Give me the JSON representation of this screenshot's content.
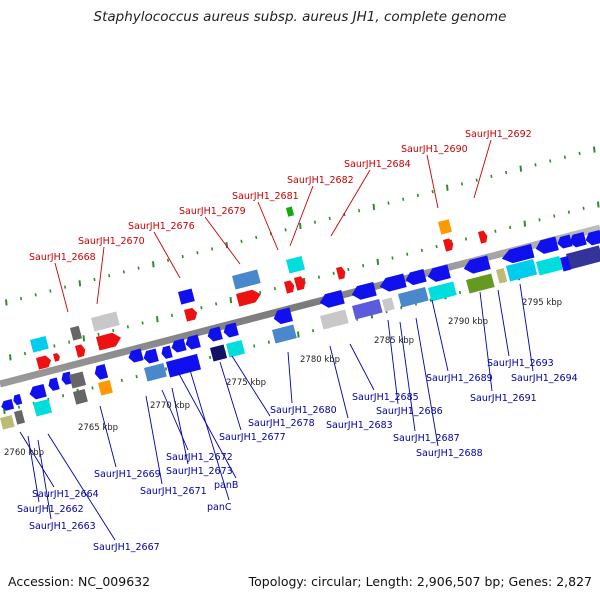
{
  "title": "Staphylococcus aureus subsp. aureus JH1, complete genome",
  "footer": {
    "accession": "Accession: NC_009632",
    "topology": "Topology: circular; Length: 2,906,507 bp; Genes: 2,827"
  },
  "colors": {
    "backbone": "#8c8c8c",
    "ticks": "#2e8b2e",
    "top_labels": "#cc0000",
    "bottom_labels": "#0000aa"
  },
  "scale_labels": [
    "2760 kbp",
    "2765 kbp",
    "2770 kbp",
    "2775 kbp",
    "2780 kbp",
    "2785 kbp",
    "2790 kbp",
    "2795 kbp"
  ],
  "top_labels": [
    "SaurJH1_2668",
    "SaurJH1_2670",
    "SaurJH1_2676",
    "SaurJH1_2679",
    "SaurJH1_2681",
    "SaurJH1_2682",
    "SaurJH1_2684",
    "SaurJH1_2690",
    "SaurJH1_2692"
  ],
  "bottom_labels": [
    "SaurJH1_2664",
    "SaurJH1_2662",
    "SaurJH1_2663",
    "SaurJH1_2667",
    "SaurJH1_2669",
    "SaurJH1_2671",
    "SaurJH1_2672",
    "SaurJH1_2673",
    "panB",
    "panC",
    "SaurJH1_2677",
    "SaurJH1_2678",
    "SaurJH1_2680",
    "SaurJH1_2683",
    "SaurJH1_2685",
    "SaurJH1_2686",
    "SaurJH1_2687",
    "SaurJH1_2688",
    "SaurJH1_2689",
    "SaurJH1_2691",
    "SaurJH1_2693",
    "SaurJH1_2694"
  ]
}
